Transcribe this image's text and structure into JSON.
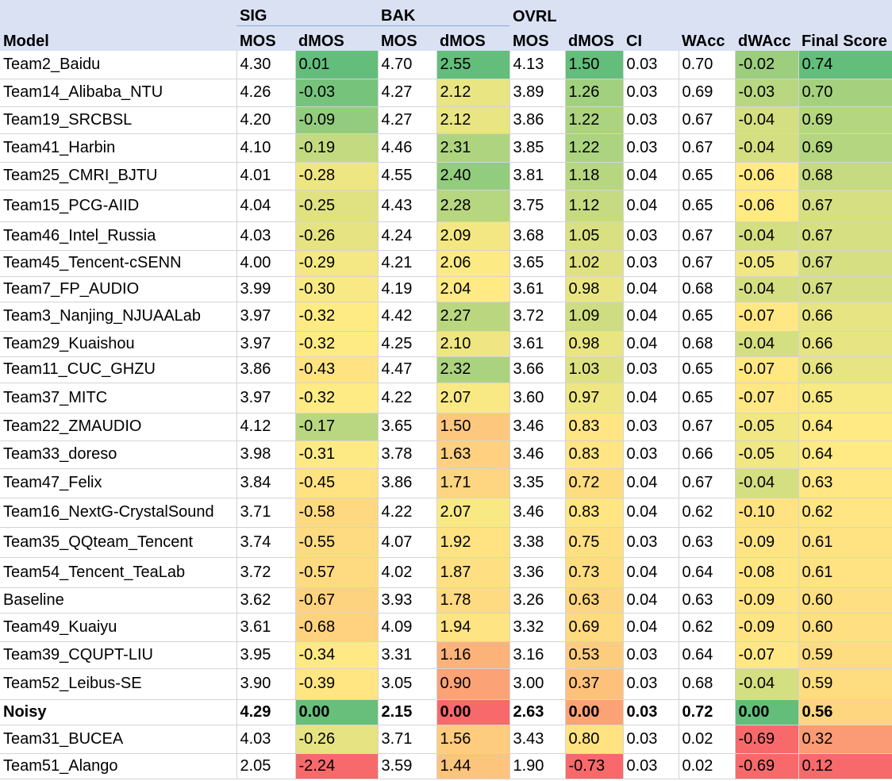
{
  "header": {
    "groups": {
      "sig": "SIG",
      "bak": "BAK",
      "ovrl": "OVRL"
    },
    "columns": [
      "Model",
      "MOS",
      "dMOS",
      "MOS",
      "dMOS",
      "MOS",
      "dMOS",
      "CI",
      "WAcc",
      "dWAcc",
      "Final Score"
    ]
  },
  "colors": {
    "header_bg": "#d9e1f2",
    "scale_low": "#f8696b",
    "scale_mid": "#ffeb84",
    "scale_high": "#63be7b"
  },
  "rows": [
    [
      "Team2_Baidu",
      "4.30",
      "0.01",
      "4.70",
      "2.55",
      "4.13",
      "1.50",
      "0.03",
      "0.70",
      "-0.02",
      "0.74"
    ],
    [
      "Team14_Alibaba_NTU",
      "4.26",
      "-0.03",
      "4.27",
      "2.12",
      "3.89",
      "1.26",
      "0.03",
      "0.69",
      "-0.03",
      "0.70"
    ],
    [
      "Team19_SRCBSL",
      "4.20",
      "-0.09",
      "4.27",
      "2.12",
      "3.86",
      "1.22",
      "0.03",
      "0.67",
      "-0.04",
      "0.69"
    ],
    [
      "Team41_Harbin",
      "4.10",
      "-0.19",
      "4.46",
      "2.31",
      "3.85",
      "1.22",
      "0.03",
      "0.67",
      "-0.04",
      "0.69"
    ],
    [
      "Team25_CMRI_BJTU",
      "4.01",
      "-0.28",
      "4.55",
      "2.40",
      "3.81",
      "1.18",
      "0.04",
      "0.65",
      "-0.06",
      "0.68"
    ],
    [
      "Team15_PCG-AIID",
      "4.04",
      "-0.25",
      "4.43",
      "2.28",
      "3.75",
      "1.12",
      "0.04",
      "0.65",
      "-0.06",
      "0.67"
    ],
    [
      "Team46_Intel_Russia",
      "4.03",
      "-0.26",
      "4.24",
      "2.09",
      "3.68",
      "1.05",
      "0.03",
      "0.67",
      "-0.04",
      "0.67"
    ],
    [
      "Team45_Tencent-cSENN",
      "4.00",
      "-0.29",
      "4.21",
      "2.06",
      "3.65",
      "1.02",
      "0.03",
      "0.67",
      "-0.05",
      "0.67"
    ],
    [
      "Team7_FP_AUDIO",
      "3.99",
      "-0.30",
      "4.19",
      "2.04",
      "3.61",
      "0.98",
      "0.04",
      "0.68",
      "-0.04",
      "0.67"
    ],
    [
      "Team3_Nanjing_NJUAALab",
      "3.97",
      "-0.32",
      "4.42",
      "2.27",
      "3.72",
      "1.09",
      "0.04",
      "0.65",
      "-0.07",
      "0.66"
    ],
    [
      "Team29_Kuaishou",
      "3.97",
      "-0.32",
      "4.25",
      "2.10",
      "3.61",
      "0.98",
      "0.04",
      "0.68",
      "-0.04",
      "0.66"
    ],
    [
      "Team11_CUC_GHZU",
      "3.86",
      "-0.43",
      "4.47",
      "2.32",
      "3.66",
      "1.03",
      "0.03",
      "0.65",
      "-0.07",
      "0.66"
    ],
    [
      "Team37_MITC",
      "3.97",
      "-0.32",
      "4.22",
      "2.07",
      "3.60",
      "0.97",
      "0.04",
      "0.65",
      "-0.07",
      "0.65"
    ],
    [
      "Team22_ZMAUDIO",
      "4.12",
      "-0.17",
      "3.65",
      "1.50",
      "3.46",
      "0.83",
      "0.03",
      "0.67",
      "-0.05",
      "0.64"
    ],
    [
      "Team33_doreso",
      "3.98",
      "-0.31",
      "3.78",
      "1.63",
      "3.46",
      "0.83",
      "0.03",
      "0.66",
      "-0.05",
      "0.64"
    ],
    [
      "Team47_Felix",
      "3.84",
      "-0.45",
      "3.86",
      "1.71",
      "3.35",
      "0.72",
      "0.04",
      "0.67",
      "-0.04",
      "0.63"
    ],
    [
      "Team16_NextG-CrystalSound",
      "3.71",
      "-0.58",
      "4.22",
      "2.07",
      "3.46",
      "0.83",
      "0.04",
      "0.62",
      "-0.10",
      "0.62"
    ],
    [
      "Team35_QQteam_Tencent",
      "3.74",
      "-0.55",
      "4.07",
      "1.92",
      "3.38",
      "0.75",
      "0.03",
      "0.63",
      "-0.09",
      "0.61"
    ],
    [
      "Team54_Tencent_TeaLab",
      "3.72",
      "-0.57",
      "4.02",
      "1.87",
      "3.36",
      "0.73",
      "0.04",
      "0.64",
      "-0.08",
      "0.61"
    ],
    [
      "Baseline",
      "3.62",
      "-0.67",
      "3.93",
      "1.78",
      "3.26",
      "0.63",
      "0.04",
      "0.63",
      "-0.09",
      "0.60"
    ],
    [
      "Team49_Kuaiyu",
      "3.61",
      "-0.68",
      "4.09",
      "1.94",
      "3.32",
      "0.69",
      "0.04",
      "0.62",
      "-0.09",
      "0.60"
    ],
    [
      "Team39_CQUPT-LIU",
      "3.95",
      "-0.34",
      "3.31",
      "1.16",
      "3.16",
      "0.53",
      "0.03",
      "0.64",
      "-0.07",
      "0.59"
    ],
    [
      "Team52_Leibus-SE",
      "3.90",
      "-0.39",
      "3.05",
      "0.90",
      "3.00",
      "0.37",
      "0.03",
      "0.68",
      "-0.04",
      "0.59"
    ],
    [
      "Noisy",
      "4.29",
      "0.00",
      "2.15",
      "0.00",
      "2.63",
      "0.00",
      "0.03",
      "0.72",
      "0.00",
      "0.56"
    ],
    [
      "Team31_BUCEA",
      "4.03",
      "-0.26",
      "3.71",
      "1.56",
      "3.43",
      "0.80",
      "0.03",
      "0.02",
      "-0.69",
      "0.32"
    ],
    [
      "Team51_Alango",
      "2.05",
      "-2.24",
      "3.59",
      "1.44",
      "1.90",
      "-0.73",
      "0.03",
      "0.02",
      "-0.69",
      "0.12"
    ]
  ],
  "bold_rows": [
    "Noisy"
  ]
}
